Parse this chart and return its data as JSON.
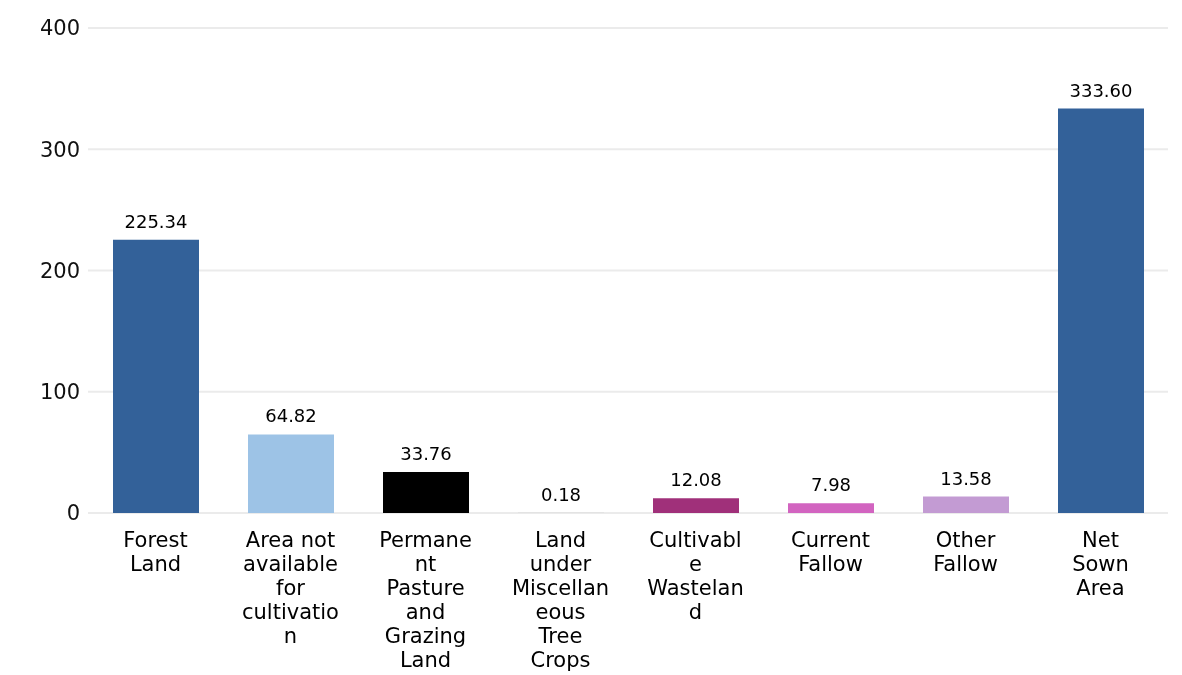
{
  "chart_data": {
    "type": "bar",
    "categories": [
      "Forest Land",
      "Area not available for cultivation",
      "Permanent Pasture and Grazing Land",
      "Land under Miscellaneous Tree Crops",
      "Cultivable Wasteland",
      "Current Fallow",
      "Other Fallow",
      "Net Sown Area"
    ],
    "values": [
      225.34,
      64.82,
      33.76,
      0.18,
      12.08,
      7.98,
      13.58,
      333.6
    ],
    "value_labels": [
      "225.34",
      "64.82",
      "33.76",
      "0.18",
      "12.08",
      "7.98",
      "13.58",
      "333.60"
    ],
    "colors": [
      "#336199",
      "#9dc3e6",
      "#000000",
      "#cccccc",
      "#a0307a",
      "#d264c0",
      "#c39bd3",
      "#336199"
    ],
    "ylim": [
      0,
      400
    ],
    "yticks": [
      0,
      100,
      200,
      300,
      400
    ],
    "grid": "y"
  }
}
